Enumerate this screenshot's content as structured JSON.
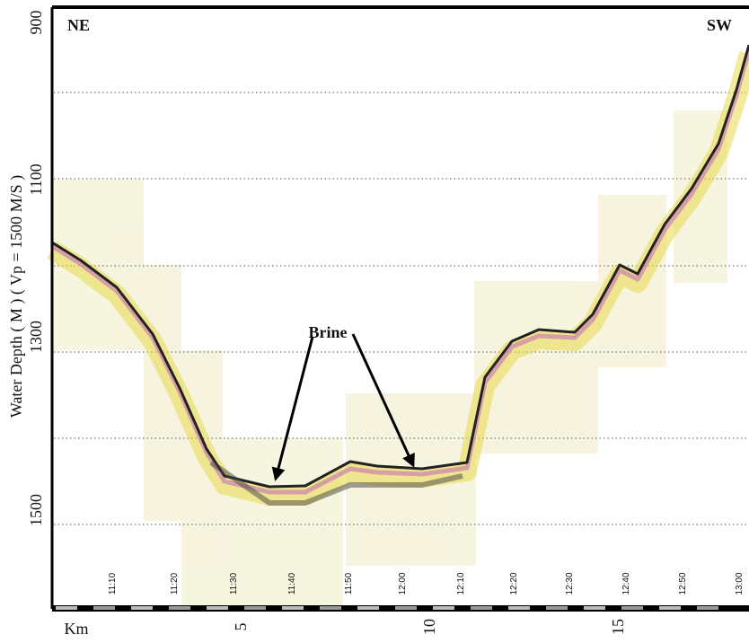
{
  "header": {
    "left": "NE",
    "right": "SW"
  },
  "y_axis": {
    "title": "Water Depth ( M )    ( Vp = 1500 M/S )",
    "labels": [
      "900",
      "1100",
      "1300",
      "1500"
    ]
  },
  "annotation": "Brine",
  "time_labels": [
    "11:10",
    "11:20",
    "11:30",
    "11:40",
    "11:50",
    "12:00",
    "12:10",
    "12:20",
    "12:30",
    "12:40",
    "12:50",
    "13:00"
  ],
  "distance": {
    "unit": "Km",
    "labels": [
      "5",
      "10",
      "15"
    ]
  }
}
